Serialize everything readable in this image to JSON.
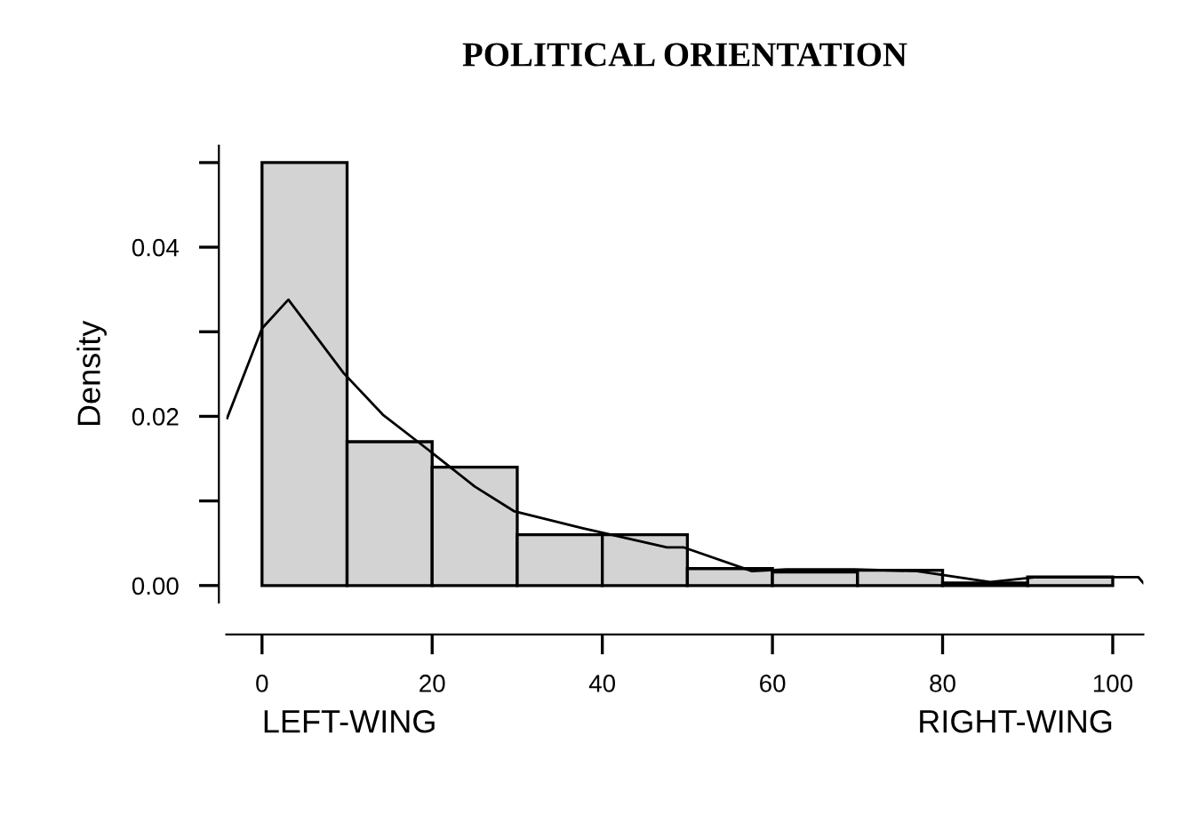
{
  "chart_data": {
    "type": "histogram",
    "title": "POLITICAL ORIENTATION",
    "ylabel": "Density",
    "bins": [
      0,
      10,
      20,
      30,
      40,
      50,
      60,
      70,
      80,
      90,
      100
    ],
    "values": [
      0.05,
      0.017,
      0.014,
      0.006,
      0.006,
      0.002,
      0.0016,
      0.0018,
      0.0003,
      0.001
    ],
    "color": "#d3d3d3",
    "series": [
      {
        "type": "line",
        "color": "#000000",
        "x": [
          -4.1,
          0,
          3.1,
          9.6,
          14.2,
          19.6,
          25,
          29.6,
          37.6,
          47.6,
          49.6,
          57.6,
          61.6,
          69.6,
          77,
          85.6,
          91,
          103,
          103.6
        ],
        "values": [
          0.0198,
          0.0304,
          0.0338,
          0.0251,
          0.0202,
          0.016,
          0.0117,
          0.0088,
          0.0068,
          0.0045,
          0.0045,
          0.0017,
          0.0019,
          0.0019,
          0.0017,
          0.0004,
          0.001,
          0.001,
          0.0003
        ]
      }
    ],
    "xlim": [
      -4.2,
      103.6
    ],
    "ylim": [
      -0.002,
      0.052
    ],
    "xticks": [
      0,
      20,
      40,
      60,
      80,
      100
    ],
    "yticks": [
      {
        "value": 0,
        "label": "0.00"
      },
      {
        "value": 0.01,
        "label": null
      },
      {
        "value": 0.02,
        "label": "0.02"
      },
      {
        "value": 0.03,
        "label": null
      },
      {
        "value": 0.04,
        "label": "0.04"
      },
      {
        "value": 0.05,
        "label": null
      }
    ],
    "annotations": [
      "LEFT-WING",
      "RIGHT-WING"
    ],
    "grid": false,
    "legend": false
  }
}
